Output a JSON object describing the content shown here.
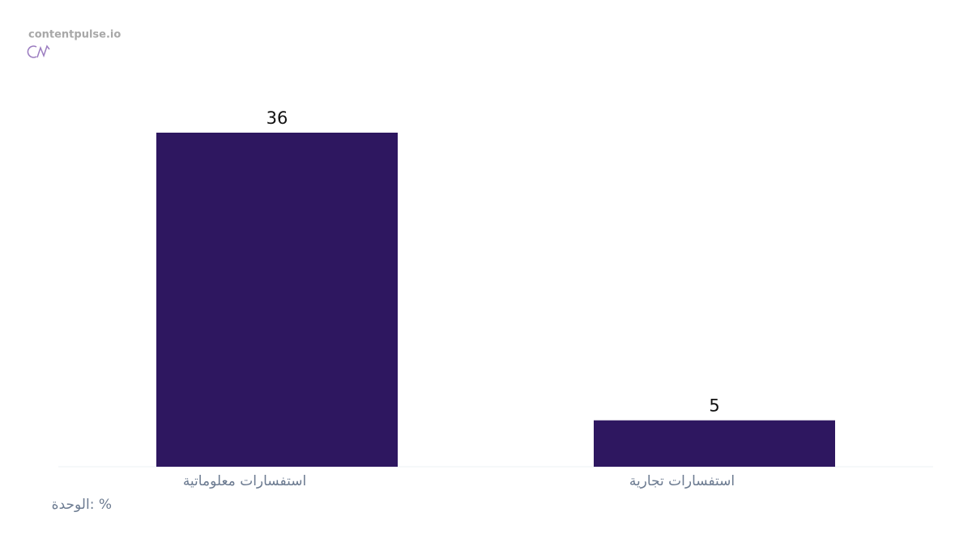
{
  "brand": "contentpulse.io",
  "chart_data": {
    "type": "bar",
    "categories": [
      "استفسارات معلوماتية",
      "استفسارات تجارية"
    ],
    "values": [
      36,
      5
    ],
    "color": "#2e1760",
    "note": "الوحدة: %"
  }
}
